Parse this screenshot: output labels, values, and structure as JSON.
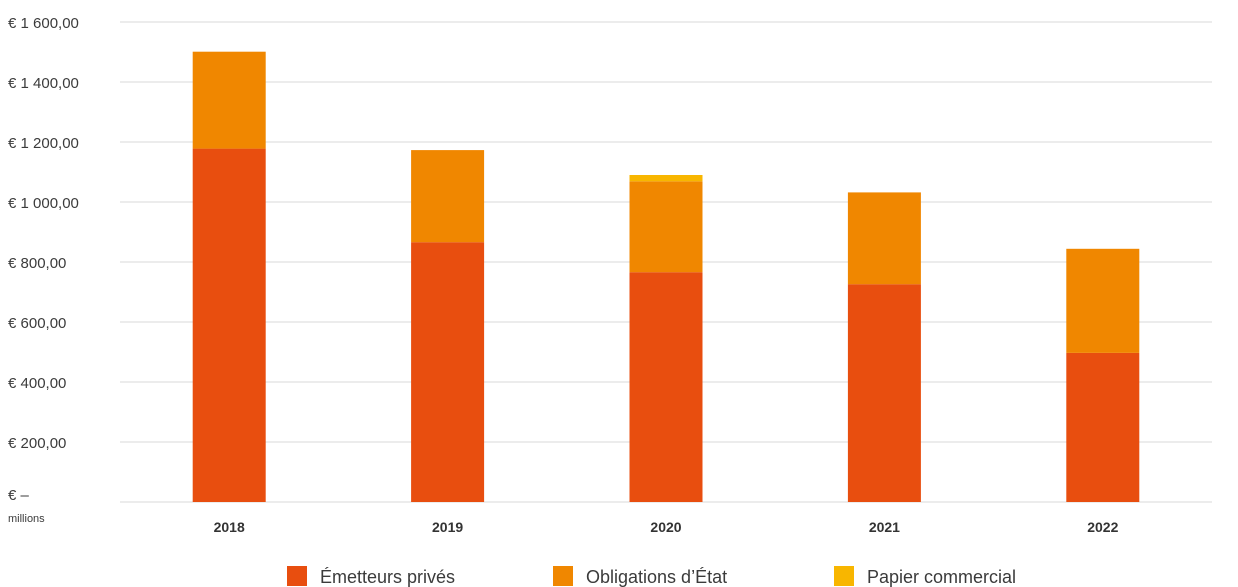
{
  "chart_data": {
    "type": "bar",
    "stacked": true,
    "categories": [
      "2018",
      "2019",
      "2020",
      "2021",
      "2022"
    ],
    "series": [
      {
        "name": "Émetteurs privés",
        "color": "#e84e0f",
        "values": [
          1178,
          866,
          766,
          726,
          497
        ]
      },
      {
        "name": "Obligations d’État",
        "color": "#f08700",
        "values": [
          323,
          307,
          303,
          306,
          347
        ]
      },
      {
        "name": "Papier commercial",
        "color": "#f8b600",
        "values": [
          0,
          0,
          21,
          0,
          0
        ]
      }
    ],
    "ylim": [
      0,
      1600
    ],
    "yticks": [
      {
        "value": 0,
        "label": "€ –"
      },
      {
        "value": 200,
        "label": "€ 200,00"
      },
      {
        "value": 400,
        "label": "€ 400,00"
      },
      {
        "value": 600,
        "label": "€ 600,00"
      },
      {
        "value": 800,
        "label": "€ 800,00"
      },
      {
        "value": 1000,
        "label": "€ 1 000,00"
      },
      {
        "value": 1200,
        "label": "€ 1 200,00"
      },
      {
        "value": 1400,
        "label": "€ 1 400,00"
      },
      {
        "value": 1600,
        "label": "€ 1 600,00"
      }
    ],
    "y_unit_label": "millions",
    "grid": true,
    "legend_position": "bottom"
  }
}
